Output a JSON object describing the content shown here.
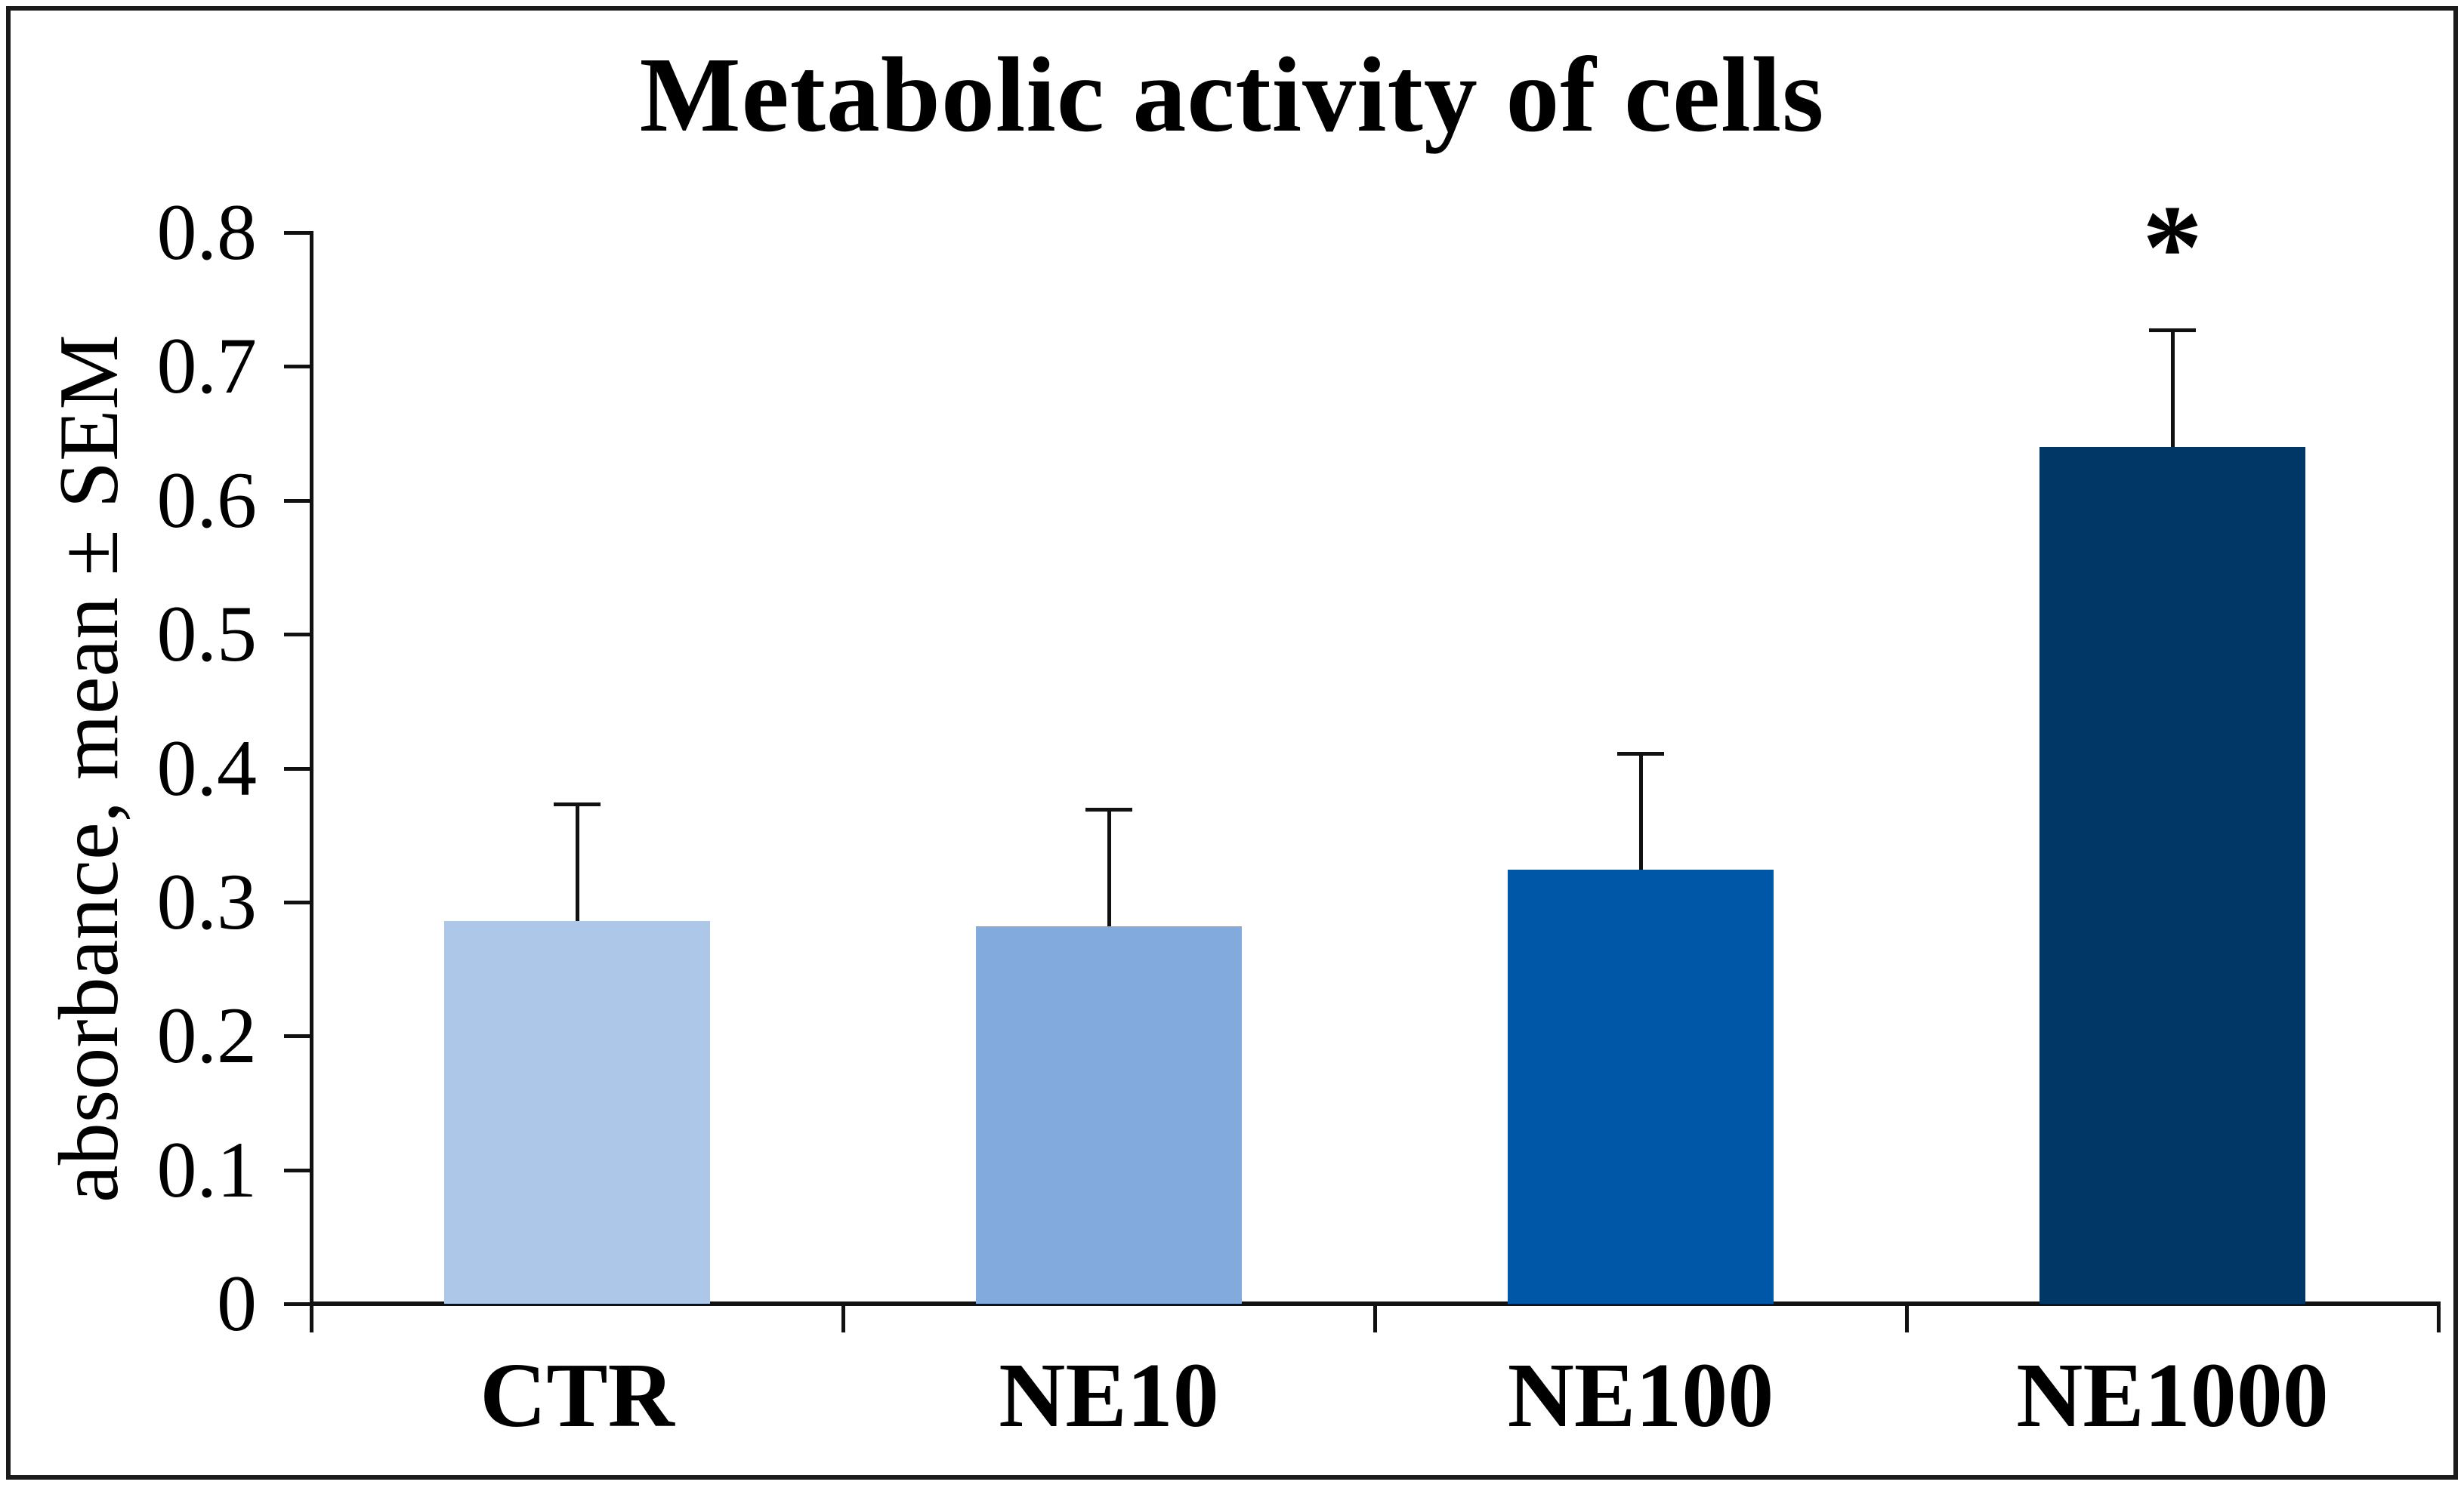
{
  "figure": {
    "border_color": "#1b1b1b",
    "background": "#ffffff"
  },
  "chart_data": {
    "type": "bar",
    "title": "Metabolic activity of cells",
    "xlabel": "",
    "ylabel": "absorbance, mean ± SEM",
    "categories": [
      "CTR",
      "NE10",
      "NE100",
      "NE1000"
    ],
    "values": [
      0.286,
      0.282,
      0.324,
      0.64
    ],
    "sem_upper": [
      0.087,
      0.087,
      0.087,
      0.087
    ],
    "annotations": [
      "",
      "",
      "",
      "*"
    ],
    "bar_colors": [
      "#ADC7E8",
      "#82AADC",
      "#0057A7",
      "#003767"
    ],
    "ylim": [
      0,
      0.8
    ],
    "yticks": [
      "0",
      "0.1",
      "0.2",
      "0.3",
      "0.4",
      "0.5",
      "0.6",
      "0.7",
      "0.8"
    ],
    "grid": false,
    "legend": "none",
    "error_bars": "upper-only",
    "axis_color": "#111111"
  }
}
